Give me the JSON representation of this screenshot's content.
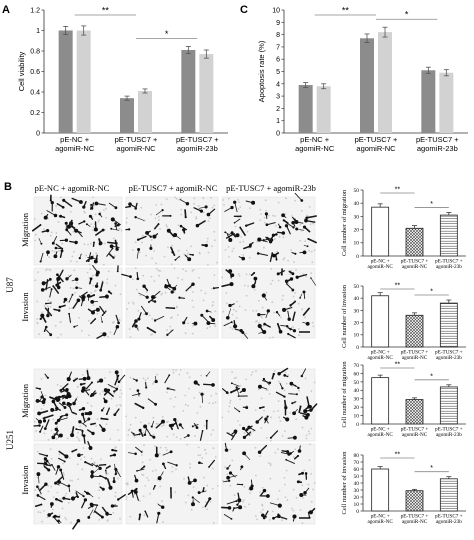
{
  "panels": {
    "A": {
      "letter": "A"
    },
    "B": {
      "letter": "B"
    },
    "C": {
      "letter": "C"
    }
  },
  "micrograph_columns": [
    "pE-NC + agomiR-NC",
    "pE-TUSC7 + agomiR-NC",
    "pE-TUSC7 + agomiR-23b"
  ],
  "cell_lines": [
    "U87",
    "U251"
  ],
  "assays": [
    "Migration",
    "Invasion"
  ],
  "colors": {
    "dark_bar": "#8c8c8c",
    "light_bar": "#d2d2d2",
    "axis": "#333333"
  },
  "chart_data": [
    {
      "id": "A",
      "type": "bar",
      "categories": [
        "pE-NC +\nagomiR-NC",
        "pE-TUSC7 +\nagomiR-NC",
        "pE-TUSC7 +\nagomiR-23b"
      ],
      "series": [
        {
          "values": [
            1.0,
            0.34,
            0.81
          ],
          "errors": [
            0.04,
            0.02,
            0.035
          ]
        },
        {
          "values": [
            1.0,
            0.41,
            0.77
          ],
          "errors": [
            0.045,
            0.02,
            0.04
          ]
        }
      ],
      "ylabel": "Cell viability",
      "ylim": [
        0,
        1.2
      ],
      "yticks": [
        "0",
        "0.2",
        "0.4",
        "0.6",
        "0.8",
        "1",
        "1.2"
      ],
      "significance": [
        {
          "from": 0,
          "to": 1,
          "label": "**"
        },
        {
          "from": 1,
          "to": 2,
          "label": "*"
        }
      ]
    },
    {
      "id": "C",
      "type": "bar",
      "categories": [
        "pE-NC +\nagomiR-NC",
        "pE-TUSC7 +\nagomiR-NC",
        "pE-TUSC7 +\nagomiR-23b"
      ],
      "series": [
        {
          "values": [
            3.9,
            7.7,
            5.1
          ],
          "errors": [
            0.2,
            0.35,
            0.25
          ]
        },
        {
          "values": [
            3.8,
            8.2,
            4.9
          ],
          "errors": [
            0.2,
            0.4,
            0.25
          ]
        }
      ],
      "ylabel": "Apoptosis rate (%)",
      "ylim": [
        0,
        10
      ],
      "yticks": [
        "0",
        "1",
        "2",
        "3",
        "4",
        "5",
        "6",
        "7",
        "8",
        "9",
        "10"
      ],
      "significance": [
        {
          "from": 0,
          "to": 1,
          "label": "**"
        },
        {
          "from": 1,
          "to": 2,
          "label": "*"
        }
      ]
    },
    {
      "id": "B-U87-migration",
      "type": "bar",
      "categories": [
        "pE-NC +\nagomiR-NC",
        "pE-TUSC7 +\nagomiR-NC",
        "pE-TUSC7 +\nagomiR-23b"
      ],
      "values": [
        37,
        21,
        31
      ],
      "errors": [
        2.5,
        2,
        2
      ],
      "patterns": [
        "none",
        "crosshatch",
        "hlines"
      ],
      "ylabel": "Cell number of migration",
      "ylim": [
        0,
        50
      ],
      "yticks": [
        "0",
        "10",
        "20",
        "30",
        "40",
        "50"
      ],
      "significance": [
        {
          "from": 0,
          "to": 1,
          "label": "**"
        },
        {
          "from": 1,
          "to": 2,
          "label": "*"
        }
      ]
    },
    {
      "id": "B-U87-invasion",
      "type": "bar",
      "categories": [
        "pE-NC +\nagomiR-NC",
        "pE-TUSC7 +\nagomiR-NC",
        "pE-TUSC7 +\nagomiR-23b"
      ],
      "values": [
        42,
        26,
        36
      ],
      "errors": [
        2.5,
        2,
        2.5
      ],
      "patterns": [
        "none",
        "crosshatch",
        "hlines"
      ],
      "ylabel": "Cell number of invasion",
      "ylim": [
        0,
        50
      ],
      "yticks": [
        "0",
        "10",
        "20",
        "30",
        "40",
        "50"
      ],
      "significance": [
        {
          "from": 0,
          "to": 1,
          "label": "**"
        },
        {
          "from": 1,
          "to": 2,
          "label": "*"
        }
      ]
    },
    {
      "id": "B-U251-migration",
      "type": "bar",
      "categories": [
        "pE-NC +\nagomiR-NC",
        "pE-TUSC7 +\nagomiR-NC",
        "pE-TUSC7 +\nagomiR-23b"
      ],
      "values": [
        55,
        29,
        44
      ],
      "errors": [
        3,
        2,
        2.5
      ],
      "patterns": [
        "none",
        "crosshatch",
        "hlines"
      ],
      "ylabel": "Cell number of migration",
      "ylim": [
        0,
        70
      ],
      "yticks": [
        "0",
        "10",
        "20",
        "30",
        "40",
        "50",
        "60",
        "70"
      ],
      "significance": [
        {
          "from": 0,
          "to": 1,
          "label": "**"
        },
        {
          "from": 1,
          "to": 2,
          "label": "*"
        }
      ]
    },
    {
      "id": "B-U251-invasion",
      "type": "bar",
      "categories": [
        "pE-NC +\nagomiR-NC",
        "pE-TUSC7 +\nagomiR-NC",
        "pE-TUSC7 +\nagomiR-23b"
      ],
      "values": [
        60,
        29,
        46
      ],
      "errors": [
        3.5,
        2,
        3
      ],
      "patterns": [
        "none",
        "crosshatch",
        "hlines"
      ],
      "ylabel": "Cell number of invasion",
      "ylim": [
        0,
        80
      ],
      "yticks": [
        "0",
        "10",
        "20",
        "30",
        "40",
        "50",
        "60",
        "70",
        "80"
      ],
      "significance": [
        {
          "from": 0,
          "to": 1,
          "label": "**"
        },
        {
          "from": 1,
          "to": 2,
          "label": "*"
        }
      ]
    }
  ]
}
